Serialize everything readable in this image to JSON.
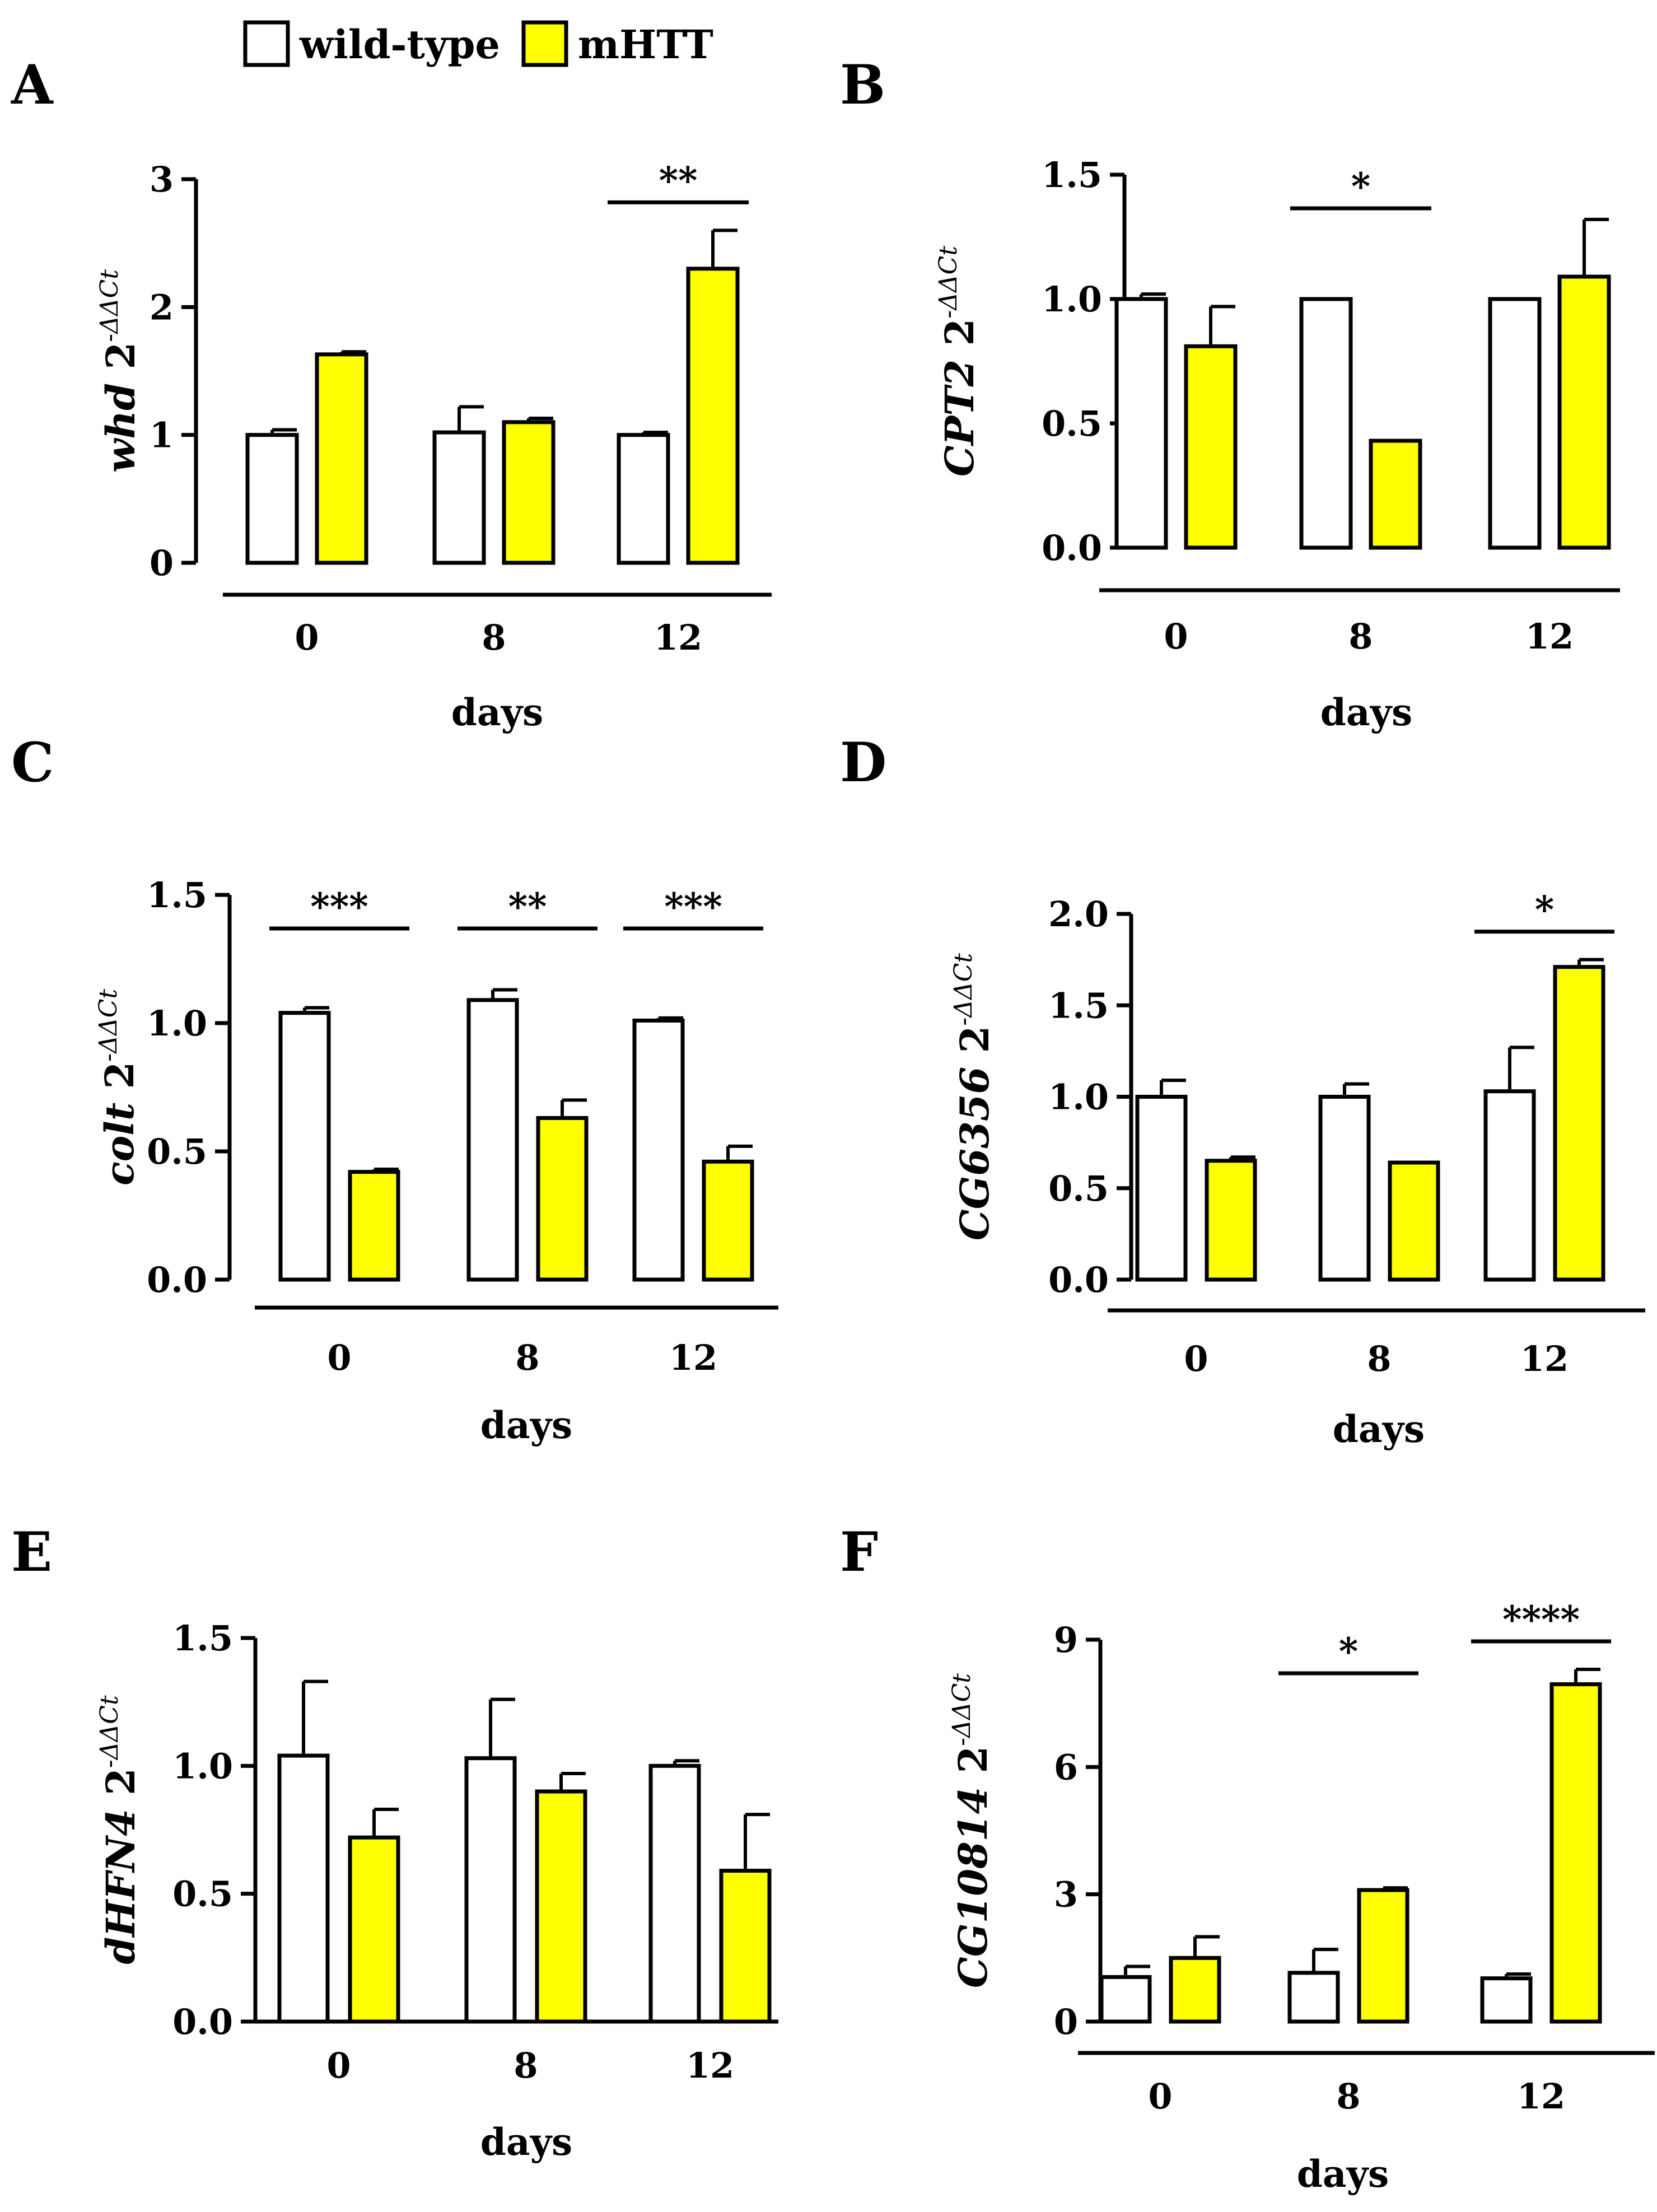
{
  "legend": {
    "items": [
      {
        "label": "wild-type",
        "color": "#ffffff"
      },
      {
        "label": "mHTT",
        "color": "#ffff00"
      }
    ]
  },
  "chart_data": [
    {
      "type": "bar",
      "panel": "A",
      "gene": "whd",
      "ylabel_suffix": "2",
      "ylabel_exponent": "-ΔΔCt",
      "xlabel": "days",
      "categories": [
        "0",
        "8",
        "12"
      ],
      "ylim": [
        0,
        3
      ],
      "yticks": [
        "0",
        "1",
        "2",
        "3"
      ],
      "series": [
        {
          "name": "wild-type",
          "color": "#ffffff",
          "values": [
            1.0,
            1.02,
            1.0
          ],
          "errors": [
            0.04,
            0.2,
            0.02
          ]
        },
        {
          "name": "mHTT",
          "color": "#ffff00",
          "values": [
            1.63,
            1.1,
            2.3
          ],
          "errors": [
            0.02,
            0.03,
            0.3
          ]
        }
      ],
      "significance": [
        {
          "category": "12",
          "label": "**"
        }
      ]
    },
    {
      "type": "bar",
      "panel": "B",
      "gene": "CPT2",
      "ylabel_suffix": "2",
      "ylabel_exponent": "-ΔΔCt",
      "xlabel": "days",
      "categories": [
        "0",
        "8",
        "12"
      ],
      "ylim": [
        0,
        1.5
      ],
      "yticks": [
        "0.0",
        "0.5",
        "1.0",
        "1.5"
      ],
      "series": [
        {
          "name": "wild-type",
          "color": "#ffffff",
          "values": [
            1.0,
            1.0,
            1.0
          ],
          "errors": [
            0.02,
            0.0,
            0.0
          ]
        },
        {
          "name": "mHTT",
          "color": "#ffff00",
          "values": [
            0.81,
            0.43,
            1.09
          ],
          "errors": [
            0.16,
            0.0,
            0.23
          ]
        }
      ],
      "significance": [
        {
          "category": "8",
          "label": "*"
        }
      ]
    },
    {
      "type": "bar",
      "panel": "C",
      "gene": "colt",
      "ylabel_suffix": "2",
      "ylabel_exponent": "-ΔΔCt",
      "xlabel": "days",
      "categories": [
        "0",
        "8",
        "12"
      ],
      "ylim": [
        0,
        1.5
      ],
      "yticks": [
        "0.0",
        "0.5",
        "1.0",
        "1.5"
      ],
      "series": [
        {
          "name": "wild-type",
          "color": "#ffffff",
          "values": [
            1.04,
            1.09,
            1.01
          ],
          "errors": [
            0.02,
            0.04,
            0.01
          ]
        },
        {
          "name": "mHTT",
          "color": "#ffff00",
          "values": [
            0.42,
            0.63,
            0.46
          ],
          "errors": [
            0.01,
            0.07,
            0.06
          ]
        }
      ],
      "significance": [
        {
          "category": "0",
          "label": "***"
        },
        {
          "category": "8",
          "label": "**"
        },
        {
          "category": "12",
          "label": "***"
        }
      ]
    },
    {
      "type": "bar",
      "panel": "D",
      "gene": "CG6356",
      "ylabel_suffix": "2",
      "ylabel_exponent": "-ΔΔCt",
      "xlabel": "days",
      "categories": [
        "0",
        "8",
        "12"
      ],
      "ylim": [
        0,
        2.0
      ],
      "yticks": [
        "0.0",
        "0.5",
        "1.0",
        "1.5",
        "2.0"
      ],
      "series": [
        {
          "name": "wild-type",
          "color": "#ffffff",
          "values": [
            1.0,
            1.0,
            1.03
          ],
          "errors": [
            0.09,
            0.07,
            0.24
          ]
        },
        {
          "name": "mHTT",
          "color": "#ffff00",
          "values": [
            0.65,
            0.64,
            1.71
          ],
          "errors": [
            0.02,
            0.0,
            0.04
          ]
        }
      ],
      "significance": [
        {
          "category": "12",
          "label": "*"
        }
      ]
    },
    {
      "type": "bar",
      "panel": "E",
      "gene": "dHFN4",
      "ylabel_suffix": "2",
      "ylabel_exponent": "-ΔΔCt",
      "xlabel": "days",
      "categories": [
        "0",
        "8",
        "12"
      ],
      "ylim": [
        0,
        1.5
      ],
      "yticks": [
        "0.0",
        "0.5",
        "1.0",
        "1.5"
      ],
      "series": [
        {
          "name": "wild-type",
          "color": "#ffffff",
          "values": [
            1.04,
            1.03,
            1.0
          ],
          "errors": [
            0.29,
            0.23,
            0.02
          ]
        },
        {
          "name": "mHTT",
          "color": "#ffff00",
          "values": [
            0.72,
            0.9,
            0.59
          ],
          "errors": [
            0.11,
            0.07,
            0.22
          ]
        }
      ],
      "significance": []
    },
    {
      "type": "bar",
      "panel": "F",
      "gene": "CG10814",
      "ylabel_suffix": "2",
      "ylabel_exponent": "-ΔΔCt",
      "xlabel": "days",
      "categories": [
        "0",
        "8",
        "12"
      ],
      "ylim": [
        0,
        9
      ],
      "yticks": [
        "0",
        "3",
        "6",
        "9"
      ],
      "series": [
        {
          "name": "wild-type",
          "color": "#ffffff",
          "values": [
            1.05,
            1.15,
            1.02
          ],
          "errors": [
            0.25,
            0.55,
            0.1
          ]
        },
        {
          "name": "mHTT",
          "color": "#ffff00",
          "values": [
            1.5,
            3.1,
            7.95
          ],
          "errors": [
            0.5,
            0.05,
            0.35
          ]
        }
      ],
      "significance": [
        {
          "category": "8",
          "label": "*"
        },
        {
          "category": "12",
          "label": "****"
        }
      ]
    }
  ]
}
